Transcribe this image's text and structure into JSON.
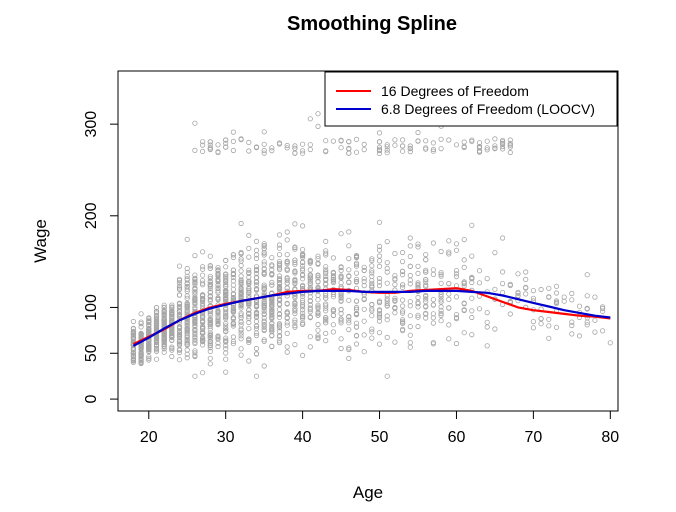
{
  "chart_data": {
    "type": "scatter",
    "title": "Smoothing Spline",
    "xlabel": "Age",
    "ylabel": "Wage",
    "xlim": [
      16,
      81
    ],
    "ylim": [
      -13,
      358
    ],
    "x_ticks": [
      20,
      30,
      40,
      50,
      60,
      70,
      80
    ],
    "y_ticks": [
      0,
      50,
      100,
      200,
      300
    ],
    "point_color": "#a6a6a6",
    "legend_position": "top-right",
    "series": [
      {
        "name": "16 Degrees of Freedom",
        "color": "#ff0000",
        "x": [
          18,
          20,
          22,
          24,
          26,
          28,
          30,
          32,
          34,
          36,
          38,
          40,
          42,
          44,
          46,
          48,
          50,
          52,
          54,
          56,
          58,
          60,
          62,
          64,
          66,
          68,
          70,
          72,
          74,
          76,
          78,
          80
        ],
        "y": [
          60,
          68,
          76,
          86,
          94,
          100,
          104,
          107,
          110,
          113,
          117,
          118,
          118,
          120,
          119,
          117,
          116,
          116,
          118,
          119,
          120,
          121,
          118,
          112,
          106,
          100,
          97,
          95,
          93,
          91,
          90,
          88
        ]
      },
      {
        "name": "6.8 Degrees of Freedom (LOOCV)",
        "color": "#0000cc",
        "x": [
          18,
          20,
          22,
          24,
          26,
          28,
          30,
          32,
          34,
          36,
          38,
          40,
          42,
          44,
          46,
          48,
          50,
          52,
          54,
          56,
          58,
          60,
          62,
          64,
          66,
          68,
          70,
          72,
          74,
          76,
          78,
          80
        ],
        "y": [
          58,
          67,
          77,
          86,
          93,
          99,
          103,
          107,
          110,
          113,
          115,
          117,
          118,
          118,
          118,
          117,
          117,
          117,
          117,
          118,
          118,
          118,
          117,
          116,
          113,
          109,
          105,
          101,
          97,
          94,
          91,
          89
        ]
      }
    ]
  }
}
